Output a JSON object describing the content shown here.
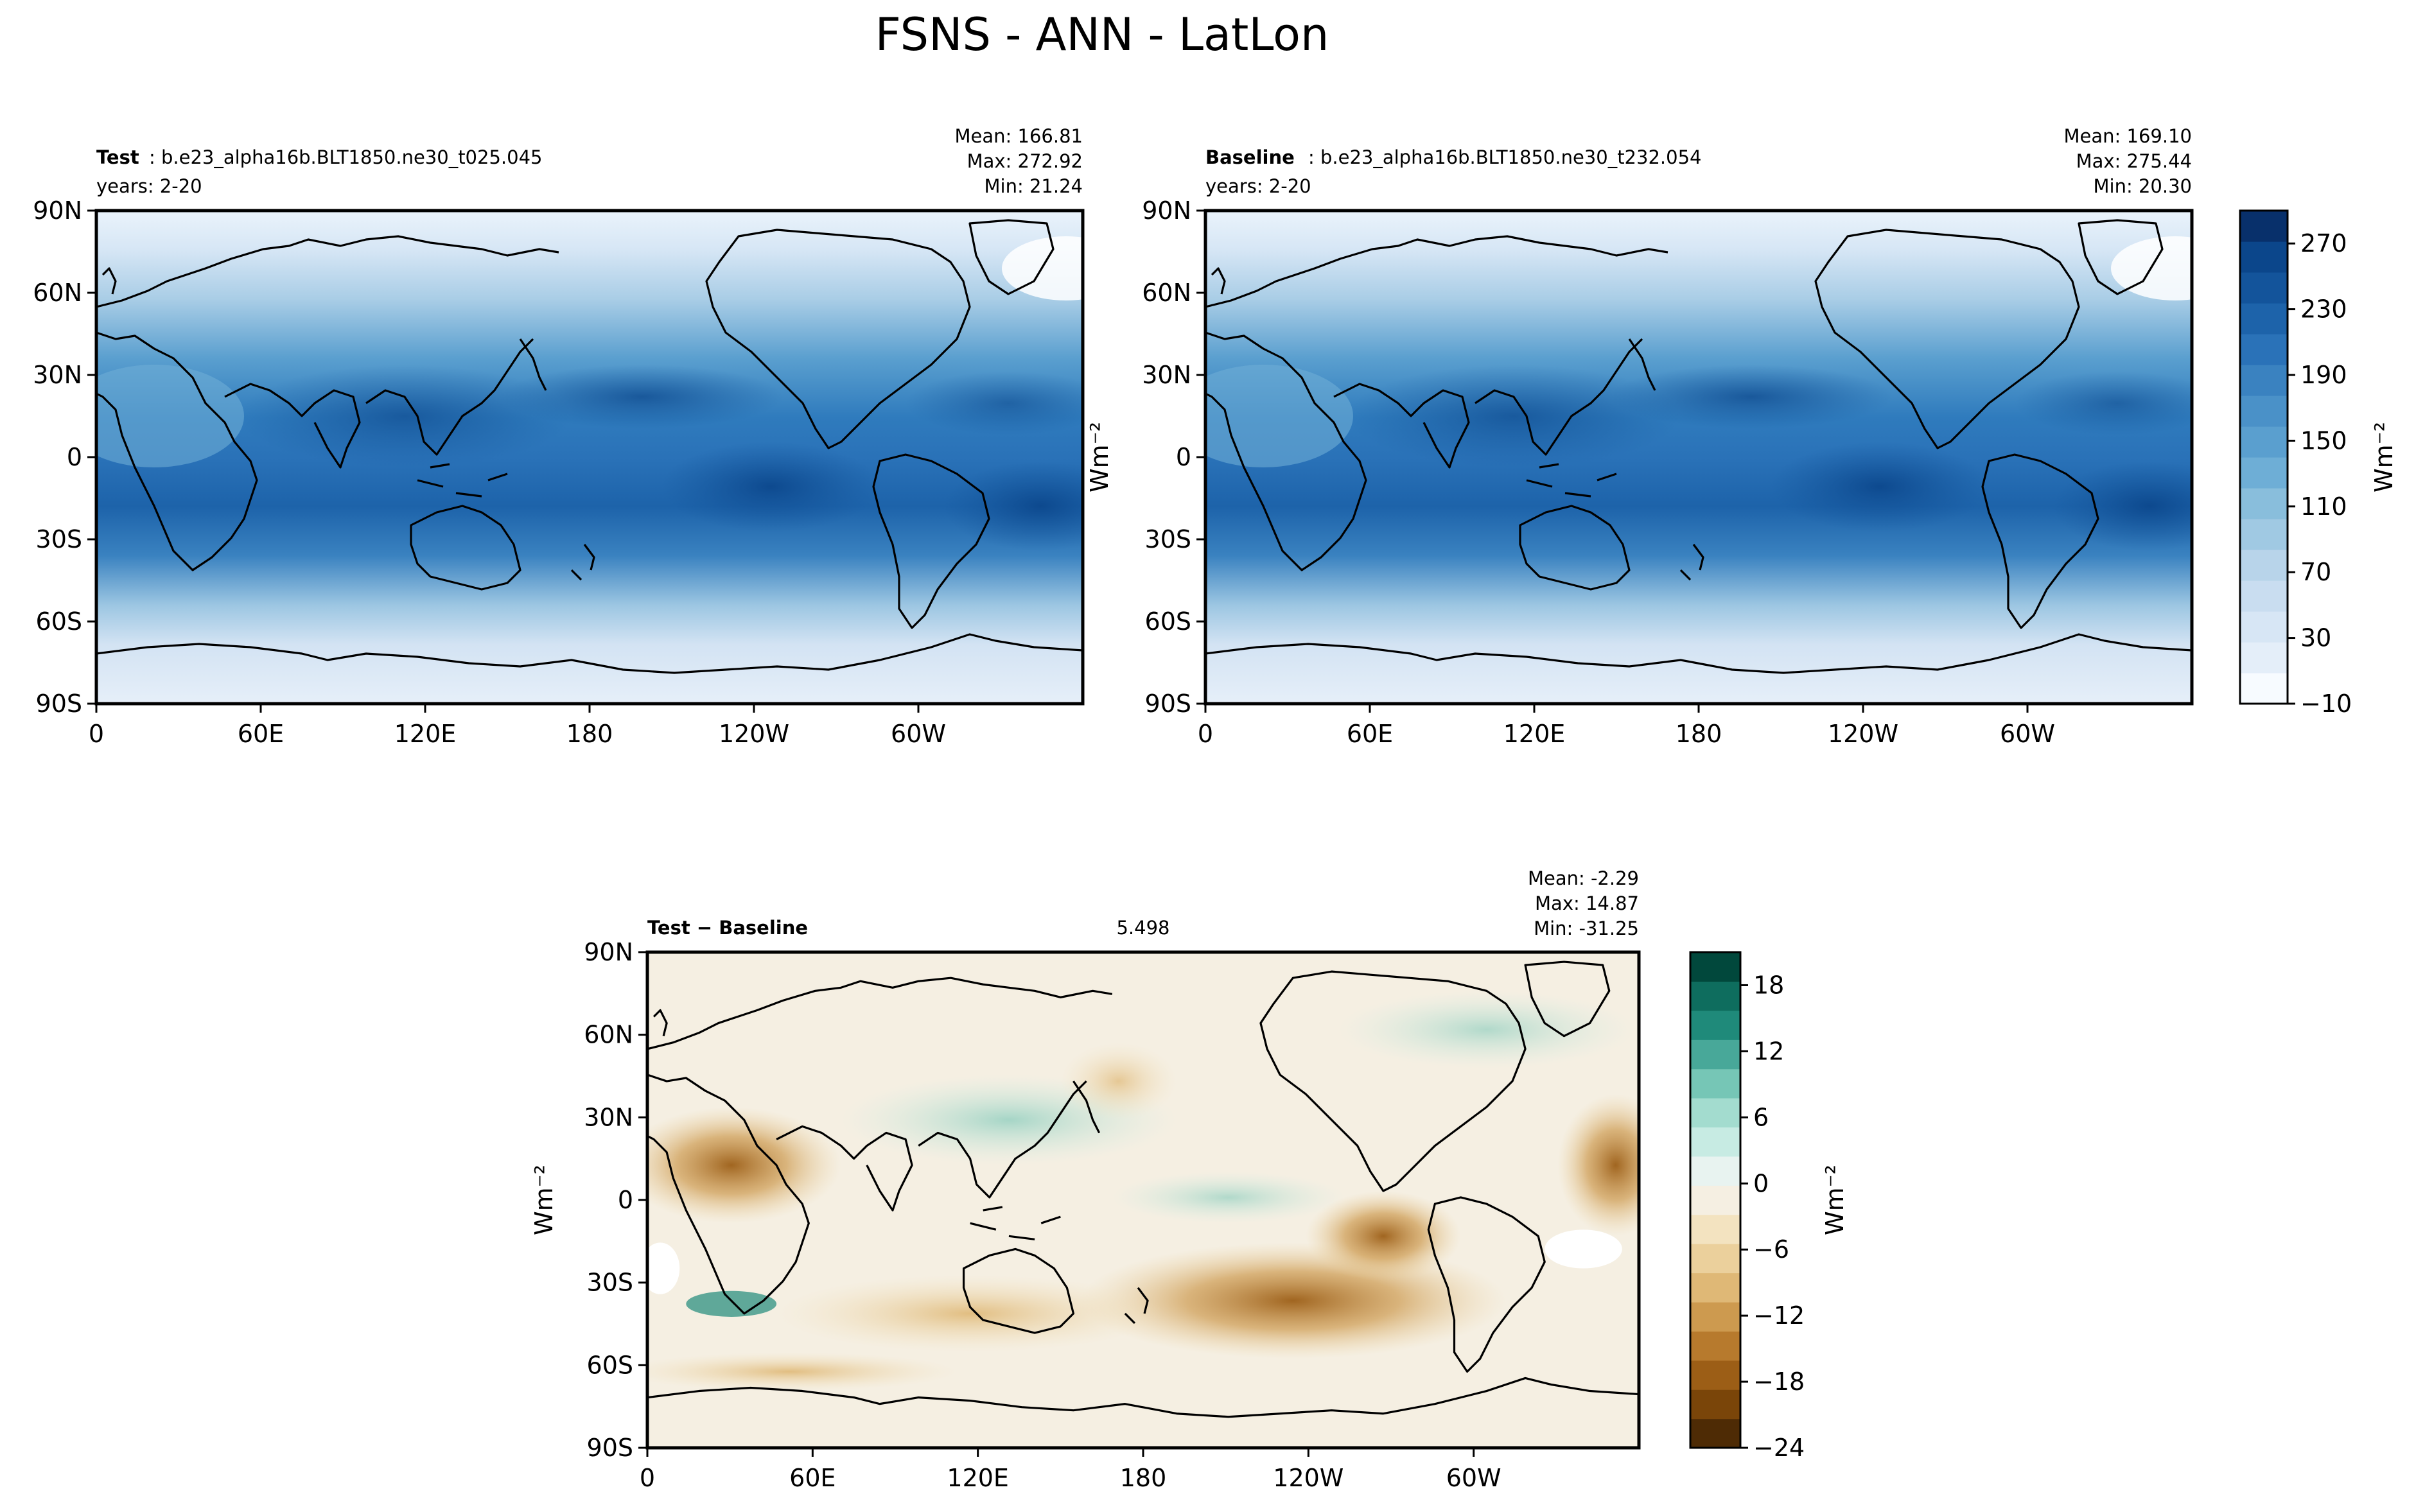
{
  "figure": {
    "title": "FSNS - ANN - LatLon"
  },
  "chart_data": [
    {
      "type": "heatmap",
      "panel": "test",
      "label_bold": "Test",
      "label_rest": ": b.e23_alpha16b.BLT1850.ne30_t025.045",
      "years": "years: 2-20",
      "stats": {
        "mean": "Mean: 166.81",
        "max": "Max: 272.92",
        "min": "Min: 21.24"
      },
      "x_ticks": [
        "0",
        "60E",
        "120E",
        "180",
        "120W",
        "60W"
      ],
      "y_ticks": [
        "90N",
        "60N",
        "30N",
        "0",
        "30S",
        "60S",
        "90S"
      ],
      "xlim": [
        0,
        360
      ],
      "ylim": [
        -90,
        90
      ],
      "mean": 166.81,
      "max": 272.92,
      "min": 21.24
    },
    {
      "type": "heatmap",
      "panel": "baseline",
      "label_bold": "Baseline",
      "label_rest": ": b.e23_alpha16b.BLT1850.ne30_t232.054",
      "years": "years: 2-20",
      "stats": {
        "mean": "Mean: 169.10",
        "max": "Max: 275.44",
        "min": "Min: 20.30"
      },
      "x_ticks": [
        "0",
        "60E",
        "120E",
        "180",
        "120W",
        "60W"
      ],
      "y_ticks": [
        "90N",
        "60N",
        "30N",
        "0",
        "30S",
        "60S",
        "90S"
      ],
      "xlim": [
        0,
        360
      ],
      "ylim": [
        -90,
        90
      ],
      "mean": 169.1,
      "max": 275.44,
      "min": 20.3,
      "colorbar": {
        "ticks": [
          "270",
          "230",
          "190",
          "150",
          "110",
          "70",
          "30",
          "−10"
        ],
        "range": [
          -10,
          290
        ],
        "label": "Wm⁻²",
        "colors": [
          "#f7fbff",
          "#e4eef9",
          "#d7e6f5",
          "#c9ddf0",
          "#b8d4ea",
          "#a0c9e3",
          "#89bedc",
          "#6eaed6",
          "#5a9fcf",
          "#4a91c8",
          "#3a82c0",
          "#2a72b8",
          "#1d63aa",
          "#13549b",
          "#0b468b",
          "#08306b"
        ]
      }
    },
    {
      "type": "heatmap",
      "panel": "difference",
      "label_bold": "Test − Baseline",
      "rmse": 5.498,
      "stats": {
        "mean": "Mean: -2.29",
        "max": "Max: 14.87",
        "min": "Min: -31.25"
      },
      "x_ticks": [
        "0",
        "60E",
        "120E",
        "180",
        "120W",
        "60W"
      ],
      "y_ticks": [
        "90N",
        "60N",
        "30N",
        "0",
        "30S",
        "60S",
        "90S"
      ],
      "xlim": [
        0,
        360
      ],
      "ylim": [
        -90,
        90
      ],
      "mean": -2.29,
      "max": 14.87,
      "min": -31.25,
      "colorbar": {
        "ticks": [
          "18",
          "12",
          "6",
          "0",
          "−6",
          "−12",
          "−18",
          "−24"
        ],
        "range": [
          -24,
          21
        ],
        "label": "Wm⁻²",
        "colors": [
          "#4e2b05",
          "#7a4509",
          "#9c5e16",
          "#b77a2d",
          "#cd9a4f",
          "#dfb876",
          "#ebd09c",
          "#f3e3c0",
          "#f5efe2",
          "#e8f3f0",
          "#c7ebe3",
          "#a3dccf",
          "#76c6b6",
          "#48a899",
          "#1f8a7a",
          "#0e6d5e",
          "#01483c"
        ]
      }
    }
  ],
  "axis_unit": "Wm⁻²"
}
